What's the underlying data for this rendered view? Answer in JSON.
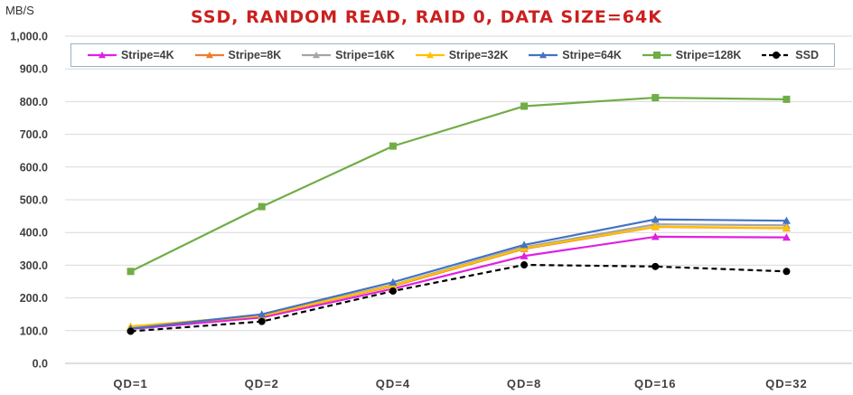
{
  "chart_data": {
    "type": "line",
    "title": "SSD, RANDOM READ, RAID 0, DATA SIZE=64K",
    "ylabel": "MB/S",
    "xlabel": "",
    "ylim": [
      0,
      1000
    ],
    "y_ticks": [
      "0.0",
      "100.0",
      "200.0",
      "300.0",
      "400.0",
      "500.0",
      "600.0",
      "700.0",
      "800.0",
      "900.0",
      "1,000.0"
    ],
    "y_tick_values": [
      0,
      100,
      200,
      300,
      400,
      500,
      600,
      700,
      800,
      900,
      1000
    ],
    "categories": [
      "QD=1",
      "QD=2",
      "QD=4",
      "QD=8",
      "QD=16",
      "QD=32"
    ],
    "grid": true,
    "legend_position": "top",
    "series": [
      {
        "name": "Stripe=4K",
        "color": "#e020e0",
        "marker": "triangle",
        "dash": false,
        "values": [
          105,
          140,
          228,
          328,
          387,
          385
        ]
      },
      {
        "name": "Stripe=8K",
        "color": "#ed7d31",
        "marker": "triangle",
        "dash": false,
        "values": [
          110,
          145,
          236,
          350,
          417,
          413
        ]
      },
      {
        "name": "Stripe=16K",
        "color": "#a5a5a5",
        "marker": "triangle",
        "dash": false,
        "values": [
          112,
          147,
          240,
          355,
          425,
          422
        ]
      },
      {
        "name": "Stripe=32K",
        "color": "#ffc000",
        "marker": "triangle",
        "dash": false,
        "values": [
          113,
          146,
          238,
          352,
          418,
          414
        ]
      },
      {
        "name": "Stripe=64K",
        "color": "#4472c4",
        "marker": "triangle",
        "dash": false,
        "values": [
          106,
          150,
          248,
          362,
          440,
          436
        ]
      },
      {
        "name": "Stripe=128K",
        "color": "#70ad47",
        "marker": "square",
        "dash": false,
        "values": [
          281,
          479,
          664,
          786,
          812,
          807
        ]
      },
      {
        "name": "SSD",
        "color": "#000000",
        "marker": "circle",
        "dash": true,
        "values": [
          98,
          128,
          221,
          301,
          296,
          281
        ]
      }
    ]
  }
}
